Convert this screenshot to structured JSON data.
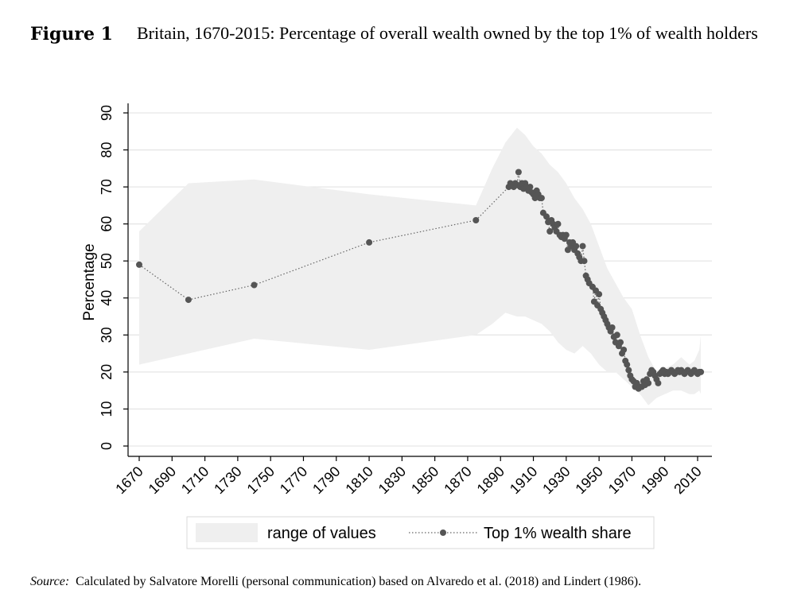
{
  "figure": {
    "label": "Figure 1",
    "title": "Britain, 1670-2015: Percentage of overall wealth owned by the top 1% of wealth holders"
  },
  "source": {
    "label": "Source:",
    "text": "Calculated by Salvatore Morelli (personal communication) based on Alvaredo et al. (2018) and Lindert (1986)."
  },
  "chart_data": {
    "type": "line",
    "title": "Britain, 1670-2015: Percentage of overall wealth owned by the top 1% of wealth holders",
    "xlabel": "",
    "ylabel": "Percentage",
    "xlim": [
      1665,
      2017
    ],
    "ylim": [
      0,
      90
    ],
    "x_ticks": [
      1670,
      1690,
      1710,
      1730,
      1750,
      1770,
      1790,
      1810,
      1830,
      1850,
      1870,
      1890,
      1910,
      1930,
      1950,
      1970,
      1990,
      2010
    ],
    "y_ticks": [
      0,
      10,
      20,
      30,
      40,
      50,
      60,
      70,
      80,
      90
    ],
    "grid": true,
    "legend": {
      "position": "bottom",
      "entries": [
        "range of values",
        "Top 1% wealth share"
      ]
    },
    "range_of_values": {
      "name": "range of values",
      "x": [
        1670,
        1700,
        1740,
        1810,
        1875,
        1885,
        1893,
        1900,
        1905,
        1910,
        1915,
        1920,
        1925,
        1930,
        1935,
        1940,
        1945,
        1950,
        1955,
        1960,
        1965,
        1970,
        1975,
        1980,
        1985,
        1990,
        1995,
        2000,
        2005,
        2008,
        2011,
        2012
      ],
      "upper": [
        58,
        71,
        72,
        68,
        65,
        75,
        82,
        86,
        84,
        81,
        79,
        76,
        74,
        71,
        67,
        64,
        60,
        54,
        48,
        44,
        40,
        37,
        30,
        24,
        20,
        21,
        22,
        24,
        22,
        23,
        26,
        30
      ],
      "lower": [
        22,
        25,
        29,
        26,
        30,
        33,
        36,
        35,
        35,
        34,
        33,
        31,
        28,
        26,
        25,
        27,
        25,
        22,
        20,
        20,
        18,
        16,
        14,
        11,
        13,
        14,
        15,
        15,
        14,
        14,
        15,
        14
      ]
    },
    "series": [
      {
        "name": "Top 1% wealth share",
        "x": [
          1670,
          1700,
          1740,
          1810,
          1875,
          1895,
          1896,
          1897,
          1898,
          1899,
          1900,
          1901,
          1902,
          1903,
          1904,
          1905,
          1906,
          1907,
          1908,
          1909,
          1910,
          1911,
          1912,
          1913,
          1914,
          1915,
          1916,
          1918,
          1919,
          1920,
          1921,
          1922,
          1923,
          1924,
          1925,
          1926,
          1927,
          1928,
          1929,
          1930,
          1931,
          1932,
          1933,
          1934,
          1935,
          1936,
          1937,
          1938,
          1939,
          1940,
          1941,
          1942,
          1943,
          1944,
          1946,
          1947,
          1948,
          1949,
          1950,
          1951,
          1952,
          1953,
          1954,
          1955,
          1956,
          1957,
          1958,
          1959,
          1960,
          1961,
          1962,
          1963,
          1964,
          1965,
          1966,
          1967,
          1968,
          1969,
          1970,
          1971,
          1972,
          1973,
          1974,
          1975,
          1976,
          1977,
          1978,
          1979,
          1980,
          1981,
          1982,
          1983,
          1984,
          1985,
          1986,
          1987,
          1988,
          1989,
          1990,
          1991,
          1992,
          1993,
          1994,
          1995,
          1996,
          1997,
          1998,
          1999,
          2000,
          2001,
          2002,
          2003,
          2004,
          2005,
          2006,
          2007,
          2008,
          2009,
          2010,
          2011,
          2012
        ],
        "y": [
          49,
          39.5,
          43.5,
          55,
          61,
          70,
          71,
          70.5,
          70,
          71,
          70.5,
          74,
          70,
          71,
          69.5,
          71,
          70,
          69,
          70,
          68.5,
          68,
          67,
          69,
          68,
          67,
          67,
          63,
          62,
          60.5,
          58,
          61,
          60,
          59,
          58,
          60,
          57,
          56.5,
          57,
          56,
          57,
          53,
          55,
          54,
          55,
          53,
          54,
          52,
          51,
          50,
          54,
          50,
          46,
          45,
          44,
          43,
          39,
          42,
          38,
          41,
          37,
          36,
          35,
          34,
          33,
          32,
          31,
          32,
          29.5,
          28,
          30,
          27,
          28,
          25,
          26,
          23,
          22,
          20.5,
          19,
          18,
          17.5,
          16,
          17,
          15.5,
          16,
          16,
          17.5,
          16.5,
          18,
          17,
          19.5,
          20.5,
          20,
          19,
          18,
          17,
          19.5,
          20,
          20.5,
          19.5,
          20,
          19.5,
          20,
          20.5,
          20,
          19.5,
          20,
          20.5,
          20,
          20.5,
          20,
          19.5,
          20,
          20.5,
          20,
          19.5,
          20,
          20.5,
          20,
          19.5,
          20,
          20
        ]
      }
    ]
  }
}
